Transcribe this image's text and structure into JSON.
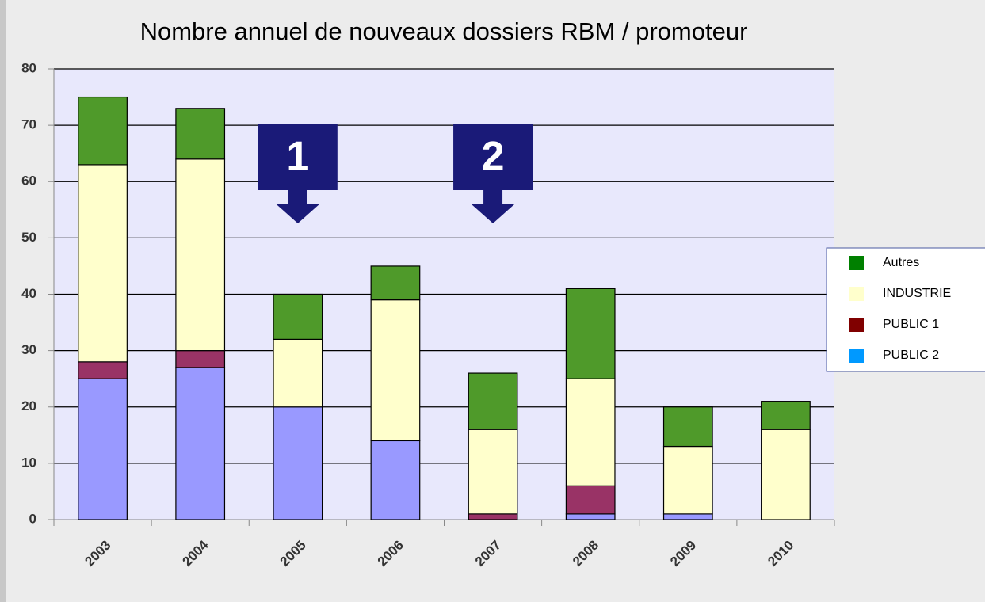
{
  "chart_data": {
    "type": "stacked_bar",
    "title": "Nombre annuel de nouveaux dossiers RBM / promoteur",
    "categories": [
      "2003",
      "2004",
      "2005",
      "2006",
      "2007",
      "2008",
      "2009",
      "2010"
    ],
    "series": [
      {
        "name": "PUBLIC 2",
        "color": "#9999ff",
        "legend_color": "#0099ff",
        "values": [
          25,
          27,
          20,
          14,
          0,
          1,
          1,
          0
        ]
      },
      {
        "name": "PUBLIC 1",
        "color": "#993366",
        "legend_color": "#800000",
        "values": [
          3,
          3,
          0,
          0,
          1,
          5,
          0,
          0
        ]
      },
      {
        "name": "INDUSTRIE",
        "color": "#ffffcc",
        "legend_color": "#ffffcc",
        "values": [
          35,
          34,
          12,
          25,
          15,
          19,
          12,
          16
        ]
      },
      {
        "name": "Autres",
        "color": "#4f9a2a",
        "legend_color": "#008000",
        "values": [
          12,
          9,
          8,
          6,
          10,
          16,
          7,
          5
        ]
      }
    ],
    "ylim": [
      0,
      80
    ],
    "yticks": [
      0,
      10,
      20,
      30,
      40,
      50,
      60,
      70,
      80
    ],
    "grid": true,
    "annotations": [
      {
        "text": "1",
        "category": "2005"
      },
      {
        "text": "2",
        "category": "2007"
      }
    ]
  }
}
